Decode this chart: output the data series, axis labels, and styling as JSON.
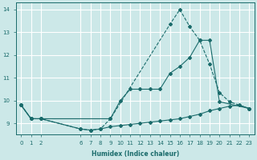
{
  "xlabel": "Humidex (Indice chaleur)",
  "bg_color": "#cce8e8",
  "grid_color": "#ffffff",
  "line_color": "#1a6b6b",
  "xlim": [
    -0.5,
    23.5
  ],
  "ylim": [
    8.5,
    14.3
  ],
  "xticks": [
    0,
    1,
    2,
    6,
    7,
    8,
    9,
    10,
    11,
    12,
    13,
    14,
    15,
    16,
    17,
    18,
    19,
    20,
    21,
    22,
    23
  ],
  "yticks": [
    9,
    10,
    11,
    12,
    13,
    14
  ],
  "line1_x": [
    0,
    1,
    2,
    6,
    7,
    8,
    9,
    15,
    16,
    17,
    18,
    19,
    20,
    21,
    23
  ],
  "line1_y": [
    9.8,
    9.2,
    9.2,
    8.75,
    8.7,
    8.75,
    9.2,
    13.35,
    14.0,
    13.25,
    12.65,
    11.6,
    10.35,
    9.95,
    9.65
  ],
  "line1_style": "--",
  "line2_x": [
    0,
    1,
    2,
    9,
    10,
    11,
    12,
    13,
    14,
    15,
    16,
    17,
    18,
    19,
    20,
    23
  ],
  "line2_y": [
    9.8,
    9.2,
    9.2,
    9.2,
    10.0,
    10.5,
    10.5,
    10.5,
    10.5,
    11.2,
    11.5,
    11.9,
    12.65,
    12.65,
    9.95,
    9.65
  ],
  "line2_style": "-",
  "line3_x": [
    0,
    1,
    2,
    6,
    7,
    8,
    9,
    10,
    11,
    12,
    13,
    14,
    15,
    16,
    17,
    18,
    19,
    20,
    21,
    22,
    23
  ],
  "line3_y": [
    9.8,
    9.2,
    9.2,
    8.75,
    8.7,
    8.75,
    8.85,
    8.9,
    8.95,
    9.0,
    9.05,
    9.1,
    9.15,
    9.2,
    9.3,
    9.4,
    9.55,
    9.65,
    9.75,
    9.8,
    9.65
  ],
  "line3_style": "-"
}
